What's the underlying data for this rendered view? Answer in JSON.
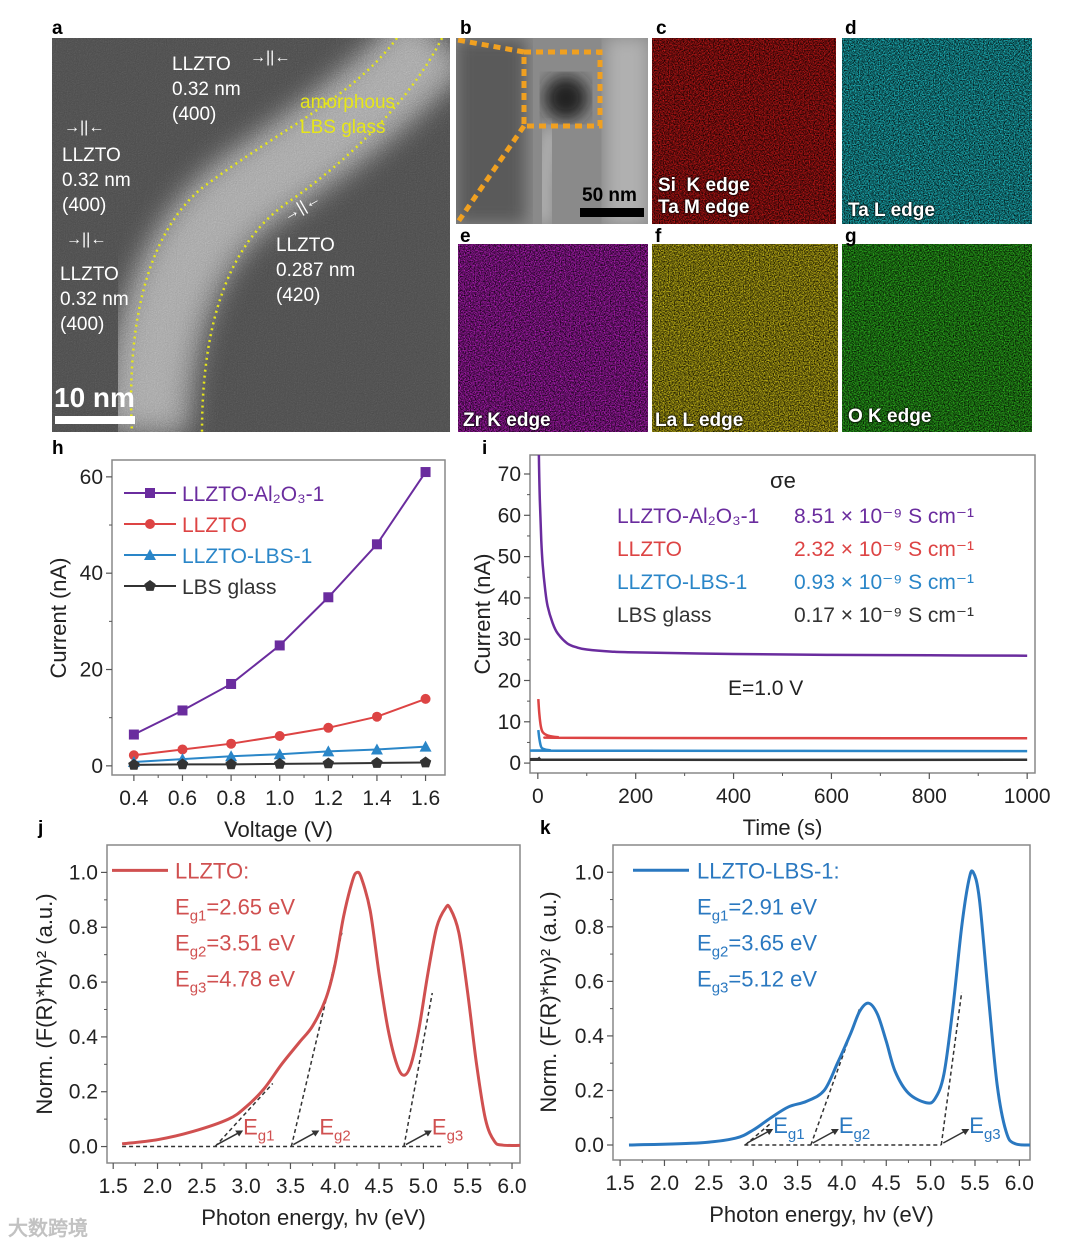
{
  "panel_letters": {
    "a": "a",
    "b": "b",
    "c": "c",
    "d": "d",
    "e": "e",
    "f": "f",
    "g": "g",
    "h": "h",
    "i": "i",
    "j": "j",
    "k": "k"
  },
  "panel_a": {
    "label1": [
      "LLZTO",
      "0.32 nm",
      "(400)"
    ],
    "label2": [
      "LLZTO",
      "0.32 nm",
      "(400)"
    ],
    "label3": [
      "LLZTO",
      "0.32 nm",
      "(400)"
    ],
    "label4": [
      "LLZTO",
      "0.287 nm",
      "(420)"
    ],
    "glass": [
      "amorphous",
      "LBS glass"
    ],
    "scale_bar": "10 nm",
    "glass_color": "#e6e619"
  },
  "panel_b": {
    "scale_bar": "50 nm",
    "box_color": "#f0a020"
  },
  "maps": {
    "c": [
      "Si  K edge",
      "Ta M edge"
    ],
    "d": "Ta L edge",
    "e": "Zr K edge",
    "f": "La L edge",
    "g": "O K edge",
    "colors": {
      "c": "#d01818",
      "d": "#20c8d0",
      "e": "#c020c8",
      "f": "#d8c818",
      "g": "#30c020"
    }
  },
  "watermark": "大数跨境",
  "chart_data": [
    {
      "type": "line",
      "panel": "h",
      "xlabel": "Voltage (V)",
      "ylabel": "Current (nA)",
      "xlim": [
        0.31,
        1.68
      ],
      "ylim": [
        -1.9,
        63.5
      ],
      "xticks": [
        "0.4",
        "0.6",
        "0.8",
        "1.0",
        "1.2",
        "1.4",
        "1.6"
      ],
      "yticks": [
        "0",
        "20",
        "40",
        "60"
      ],
      "x": [
        0.4,
        0.6,
        0.8,
        1.0,
        1.2,
        1.4,
        1.6
      ],
      "series": [
        {
          "name": "LLZTO-Al₂O₃-1",
          "color": "#6a2c9e",
          "marker": "square",
          "values": [
            6.5,
            11.5,
            17,
            25,
            35,
            46,
            61
          ]
        },
        {
          "name": "LLZTO",
          "color": "#dd4444",
          "marker": "circle",
          "values": [
            2.2,
            3.4,
            4.6,
            6.2,
            7.9,
            10.2,
            13.9
          ]
        },
        {
          "name": "LLZTO-LBS-1",
          "color": "#2a86c8",
          "marker": "triangle",
          "values": [
            0.8,
            1.4,
            2.0,
            2.4,
            3.0,
            3.4,
            4.0
          ]
        },
        {
          "name": "LBS glass",
          "color": "#333333",
          "marker": "pentagon",
          "values": [
            0.2,
            0.3,
            0.3,
            0.4,
            0.5,
            0.6,
            0.7
          ]
        }
      ],
      "legend": "top-left"
    },
    {
      "type": "line",
      "panel": "i",
      "xlabel": "Time (s)",
      "ylabel": "Current (nA)",
      "xlim": [
        -16,
        1016
      ],
      "ylim": [
        -2.4,
        74.6
      ],
      "xticks": [
        "0",
        "200",
        "400",
        "600",
        "800",
        "1000"
      ],
      "yticks": [
        "0",
        "10",
        "20",
        "30",
        "40",
        "50",
        "60",
        "70"
      ],
      "legend_title": "σe",
      "annotation": "E=1.0 V",
      "series": [
        {
          "name": "LLZTO-Al₂O₃-1",
          "sigma": "8.51 × 10⁻⁹ S cm⁻¹",
          "color": "#6a2c9e",
          "points": [
            [
              1,
              95
            ],
            [
              2,
              76
            ],
            [
              4,
              64
            ],
            [
              7,
              54
            ],
            [
              10,
              48
            ],
            [
              15,
              42
            ],
            [
              20,
              38
            ],
            [
              30,
              34
            ],
            [
              40,
              31.5
            ],
            [
              60,
              29
            ],
            [
              80,
              28
            ],
            [
              100,
              27.5
            ],
            [
              150,
              27
            ],
            [
              200,
              26.8
            ],
            [
              400,
              26.4
            ],
            [
              600,
              26.2
            ],
            [
              800,
              26.1
            ],
            [
              1000,
              26.0
            ]
          ]
        },
        {
          "name": "LLZTO",
          "sigma": "2.32 × 10⁻⁹ S cm⁻¹",
          "color": "#dd4444",
          "points": [
            [
              1,
              15.5
            ],
            [
              3,
              12
            ],
            [
              6,
              9
            ],
            [
              10,
              7.5
            ],
            [
              20,
              6.7
            ],
            [
              40,
              6.3
            ],
            [
              100,
              6.1
            ],
            [
              1000,
              6.0
            ]
          ]
        },
        {
          "name": "LLZTO-LBS-1",
          "sigma": "0.93 × 10⁻⁹ S cm⁻¹",
          "color": "#2a86c8",
          "points": [
            [
              1,
              8
            ],
            [
              3,
              6
            ],
            [
              6,
              4.2
            ],
            [
              10,
              3.5
            ],
            [
              25,
              3.1
            ],
            [
              60,
              3.0
            ],
            [
              1000,
              2.9
            ]
          ]
        },
        {
          "name": "LBS glass",
          "sigma": "0.17 × 10⁻⁹ S cm⁻¹",
          "color": "#333333",
          "points": [
            [
              1,
              1.4
            ],
            [
              4,
              1.0
            ],
            [
              10,
              0.8
            ],
            [
              1000,
              0.8
            ]
          ]
        }
      ]
    },
    {
      "type": "line",
      "panel": "j",
      "xlabel": "Photon energy, hν (eV)",
      "ylabel": "Norm. (F(R)*hv)² (a.u.)",
      "xlim": [
        1.43,
        6.09
      ],
      "ylim": [
        -0.06,
        1.1
      ],
      "xticks": [
        "1.5",
        "2.0",
        "2.5",
        "3.0",
        "3.5",
        "4.0",
        "4.5",
        "5.0",
        "5.5",
        "6.0"
      ],
      "yticks": [
        "0.0",
        "0.2",
        "0.4",
        "0.6",
        "0.8",
        "1.0"
      ],
      "color": "#d05050",
      "legend_name": "LLZTO:",
      "gaps": [
        {
          "sub": "g1",
          "value": "=2.65 eV",
          "x": 2.65
        },
        {
          "sub": "g2",
          "value": "=3.51 eV",
          "x": 3.51
        },
        {
          "sub": "g3",
          "value": "=4.78 eV",
          "x": 4.78
        }
      ],
      "tangents": [
        [
          [
            2.65,
            0
          ],
          [
            3.3,
            0.23
          ]
        ],
        [
          [
            3.51,
            0
          ],
          [
            4.08,
            0.78
          ]
        ],
        [
          [
            4.78,
            0
          ],
          [
            5.1,
            0.56
          ]
        ]
      ],
      "baseline": [
        1.6,
        5.2
      ],
      "points": [
        [
          1.6,
          0.01
        ],
        [
          2.0,
          0.025
        ],
        [
          2.4,
          0.055
        ],
        [
          2.8,
          0.1
        ],
        [
          3.0,
          0.145
        ],
        [
          3.2,
          0.21
        ],
        [
          3.4,
          0.3
        ],
        [
          3.6,
          0.38
        ],
        [
          3.75,
          0.44
        ],
        [
          3.9,
          0.54
        ],
        [
          4.0,
          0.66
        ],
        [
          4.1,
          0.84
        ],
        [
          4.2,
          0.97
        ],
        [
          4.25,
          1.0
        ],
        [
          4.3,
          0.98
        ],
        [
          4.4,
          0.86
        ],
        [
          4.5,
          0.63
        ],
        [
          4.6,
          0.43
        ],
        [
          4.7,
          0.3
        ],
        [
          4.78,
          0.26
        ],
        [
          4.86,
          0.3
        ],
        [
          4.95,
          0.43
        ],
        [
          5.05,
          0.63
        ],
        [
          5.15,
          0.8
        ],
        [
          5.25,
          0.87
        ],
        [
          5.3,
          0.87
        ],
        [
          5.4,
          0.78
        ],
        [
          5.5,
          0.56
        ],
        [
          5.6,
          0.3
        ],
        [
          5.7,
          0.1
        ],
        [
          5.8,
          0.02
        ],
        [
          5.9,
          0.005
        ],
        [
          6.2,
          0.005
        ]
      ]
    },
    {
      "type": "line",
      "panel": "k",
      "xlabel": "Photon energy, hν (eV)",
      "ylabel": "Norm. (F(R)*hv)² (a.u.)",
      "xlim": [
        1.42,
        6.12
      ],
      "ylim": [
        -0.055,
        1.1
      ],
      "xticks": [
        "1.5",
        "2.0",
        "2.5",
        "3.0",
        "3.5",
        "4.0",
        "4.5",
        "5.0",
        "5.5",
        "6.0"
      ],
      "yticks": [
        "0.0",
        "0.2",
        "0.4",
        "0.6",
        "0.8",
        "1.0"
      ],
      "color": "#2a78c0",
      "legend_name": "LLZTO-LBS-1:",
      "gaps": [
        {
          "sub": "g1",
          "value": "=2.91 eV",
          "x": 2.91
        },
        {
          "sub": "g2",
          "value": "=3.65 eV",
          "x": 3.65
        },
        {
          "sub": "g3",
          "value": "=5.12 eV",
          "x": 5.12
        }
      ],
      "tangents": [
        [
          [
            2.91,
            0
          ],
          [
            3.2,
            0.08
          ]
        ],
        [
          [
            3.65,
            0
          ],
          [
            4.2,
            0.5
          ]
        ],
        [
          [
            5.12,
            0
          ],
          [
            5.35,
            0.56
          ]
        ]
      ],
      "baseline": [
        2.9,
        5.12
      ],
      "points": [
        [
          1.6,
          0.0
        ],
        [
          2.4,
          0.008
        ],
        [
          2.8,
          0.025
        ],
        [
          3.0,
          0.055
        ],
        [
          3.2,
          0.1
        ],
        [
          3.4,
          0.14
        ],
        [
          3.6,
          0.16
        ],
        [
          3.8,
          0.2
        ],
        [
          3.95,
          0.3
        ],
        [
          4.1,
          0.41
        ],
        [
          4.2,
          0.49
        ],
        [
          4.3,
          0.52
        ],
        [
          4.4,
          0.48
        ],
        [
          4.5,
          0.38
        ],
        [
          4.6,
          0.27
        ],
        [
          4.75,
          0.19
        ],
        [
          4.95,
          0.155
        ],
        [
          5.05,
          0.17
        ],
        [
          5.15,
          0.26
        ],
        [
          5.25,
          0.5
        ],
        [
          5.35,
          0.8
        ],
        [
          5.43,
          0.97
        ],
        [
          5.48,
          1.0
        ],
        [
          5.55,
          0.9
        ],
        [
          5.65,
          0.55
        ],
        [
          5.75,
          0.22
        ],
        [
          5.85,
          0.05
        ],
        [
          5.95,
          0.005
        ],
        [
          6.2,
          0.0
        ]
      ]
    }
  ]
}
